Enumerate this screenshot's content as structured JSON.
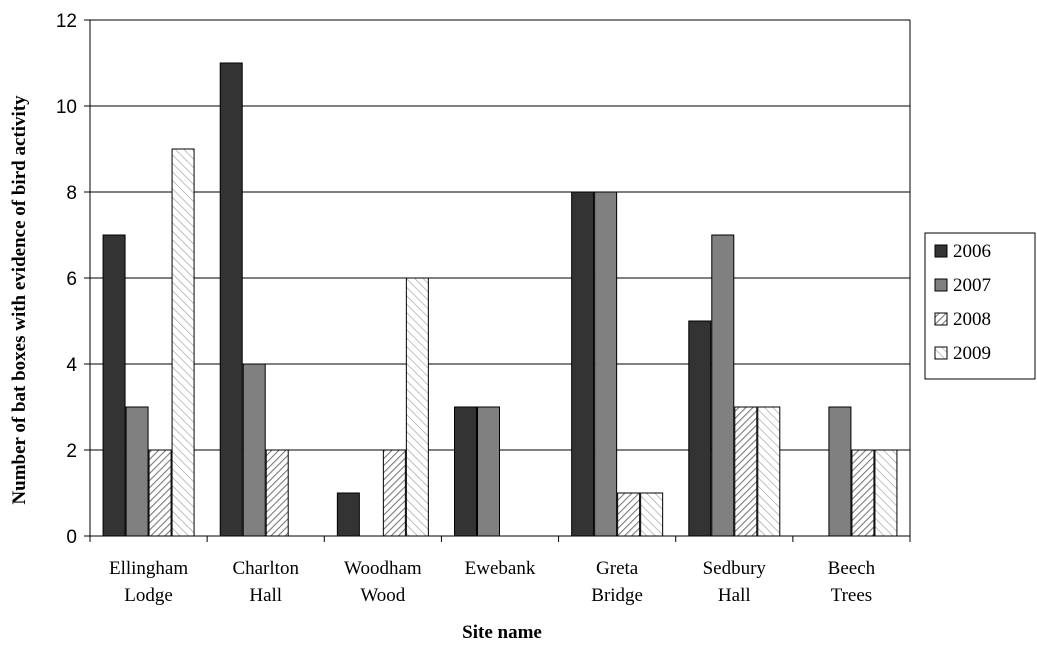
{
  "chart_data": {
    "type": "bar",
    "title": "",
    "xlabel": "Site name",
    "ylabel": "Number of bat boxes with evidence of bird activity",
    "ylim": [
      0,
      12
    ],
    "yticks": [
      0,
      2,
      4,
      6,
      8,
      10,
      12
    ],
    "grid": true,
    "legend_position": "right",
    "categories": [
      [
        "Ellingham",
        "Lodge"
      ],
      [
        "Charlton",
        "Hall"
      ],
      [
        "Woodham",
        "Wood"
      ],
      [
        "Ewebank"
      ],
      [
        "Greta",
        "Bridge"
      ],
      [
        "Sedbury",
        "Hall"
      ],
      [
        "Beech",
        "Trees"
      ]
    ],
    "series": [
      {
        "name": "2006",
        "fill": "dark",
        "values": [
          7,
          11,
          1,
          3,
          8,
          5,
          0
        ]
      },
      {
        "name": "2007",
        "fill": "gray",
        "values": [
          3,
          4,
          0,
          3,
          8,
          7,
          3
        ]
      },
      {
        "name": "2008",
        "fill": "dense-hatch",
        "values": [
          2,
          2,
          2,
          0,
          1,
          3,
          2
        ]
      },
      {
        "name": "2009",
        "fill": "light-hatch",
        "values": [
          9,
          0,
          6,
          0,
          1,
          3,
          2
        ]
      }
    ],
    "colors": {
      "dark": "#333333",
      "gray": "#808080",
      "hatch_line": "#8c8c8c",
      "grid": "#000000"
    }
  }
}
